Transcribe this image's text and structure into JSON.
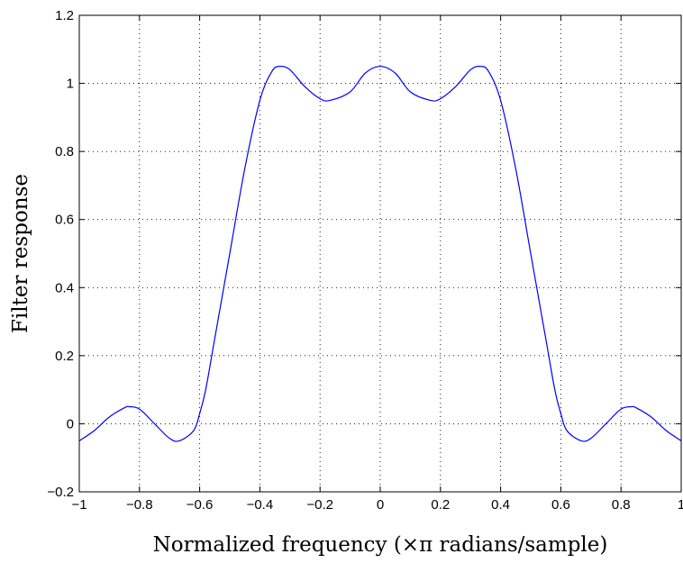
{
  "chart_data": {
    "type": "line",
    "title": "",
    "xlabel": "Normalized frequency (×π radians/sample)",
    "ylabel": "Filter response",
    "xlim": [
      -1,
      1
    ],
    "ylim": [
      -0.2,
      1.2
    ],
    "xticks": [
      -1,
      -0.8,
      -0.6,
      -0.4,
      -0.2,
      0,
      0.2,
      0.4,
      0.6,
      0.8,
      1
    ],
    "xtick_labels": [
      "−1",
      "−0.8",
      "−0.6",
      "−0.4",
      "−0.2",
      "0",
      "0.2",
      "0.4",
      "0.6",
      "0.8",
      "1"
    ],
    "yticks": [
      -0.2,
      0,
      0.2,
      0.4,
      0.6,
      0.8,
      1,
      1.2
    ],
    "ytick_labels": [
      "−0.2",
      "0",
      "0.2",
      "0.4",
      "0.6",
      "0.8",
      "1",
      "1.2"
    ],
    "grid": true,
    "series": [
      {
        "color": "#0000ff",
        "x": [
          -1,
          -0.95,
          -0.9,
          -0.85,
          -0.833,
          -0.8,
          -0.75,
          -0.7,
          -0.667,
          -0.62,
          -0.6,
          -0.58,
          -0.55,
          -0.5,
          -0.45,
          -0.4,
          -0.36,
          -0.333,
          -0.3,
          -0.25,
          -0.2,
          -0.167,
          -0.1,
          -0.05,
          0,
          0.05,
          0.1,
          0.167,
          0.2,
          0.25,
          0.3,
          0.333,
          0.36,
          0.4,
          0.45,
          0.5,
          0.55,
          0.58,
          0.6,
          0.62,
          0.667,
          0.7,
          0.75,
          0.8,
          0.833,
          0.85,
          0.9,
          0.95,
          1
        ],
        "y": [
          -0.05,
          -0.02,
          0.02,
          0.047,
          0.05,
          0.043,
          0.0,
          -0.043,
          -0.05,
          -0.02,
          0.03,
          0.1,
          0.25,
          0.5,
          0.75,
          0.95,
          1.035,
          1.05,
          1.04,
          0.99,
          0.955,
          0.95,
          0.975,
          1.03,
          1.05,
          1.03,
          0.975,
          0.95,
          0.955,
          0.99,
          1.04,
          1.05,
          1.035,
          0.95,
          0.75,
          0.5,
          0.25,
          0.1,
          0.03,
          -0.02,
          -0.05,
          -0.043,
          0.0,
          0.043,
          0.05,
          0.047,
          0.02,
          -0.02,
          -0.05
        ]
      }
    ]
  }
}
